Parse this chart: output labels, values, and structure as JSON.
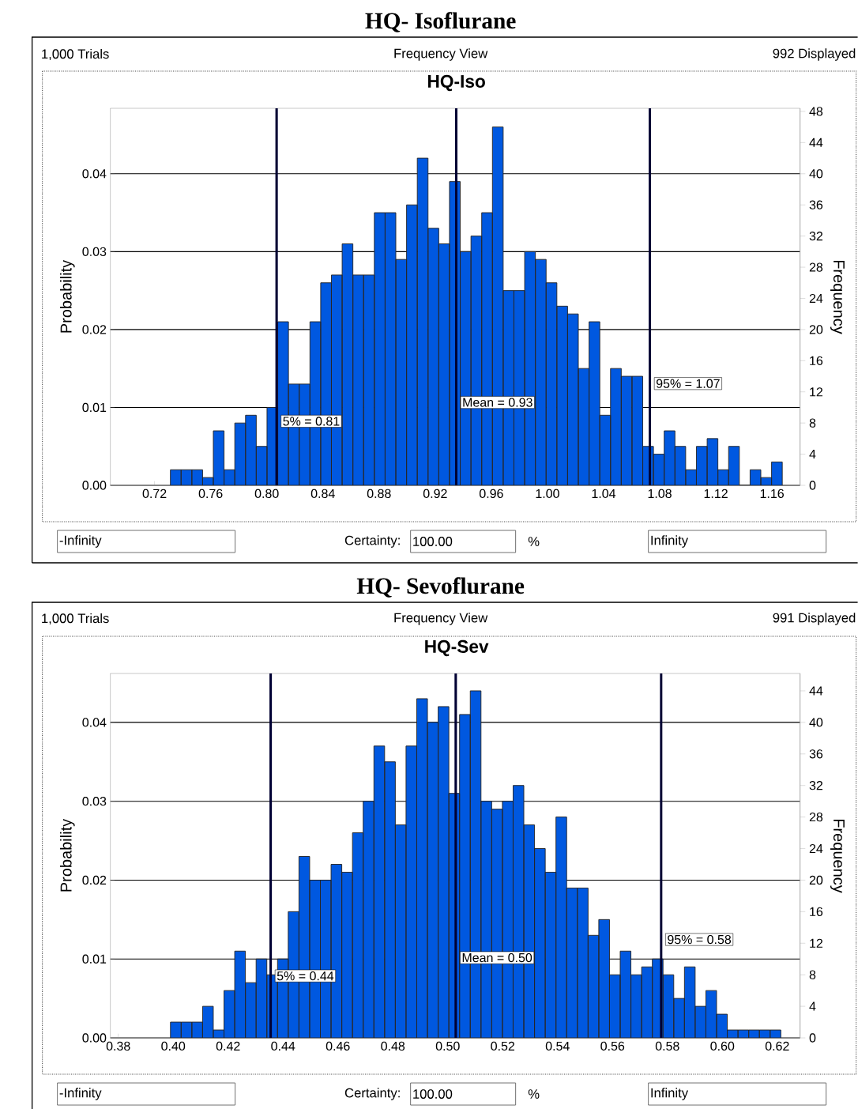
{
  "chart_data": [
    {
      "type": "histogram",
      "title": "HQ- Isoflurane",
      "subtitle": "HQ-Iso",
      "ylabel": "Probability",
      "y2label": "Frequency",
      "annotations": [
        "1,000 Trials",
        "Frequency View",
        "992 Displayed",
        "-Infinity",
        "Certainty:",
        "100.00",
        "%",
        "Infinity"
      ],
      "bins": [
        0.7313,
        0.73895,
        0.7466,
        0.75425,
        0.7619,
        0.76955,
        0.7772,
        0.78485,
        0.7925,
        0.80015,
        0.8078,
        0.81545,
        0.8231,
        0.83075,
        0.8384,
        0.84605,
        0.8537,
        0.86135,
        0.869,
        0.87665,
        0.8843,
        0.89195,
        0.8996,
        0.90725,
        0.9149,
        0.92255,
        0.9302,
        0.93785,
        0.9455,
        0.95315,
        0.9608,
        0.96845,
        0.9761,
        0.98375,
        0.9914,
        0.99905,
        1.0067,
        1.01435,
        1.022,
        1.02965,
        1.0373,
        1.04495,
        1.0526,
        1.06025,
        1.0679,
        1.07555,
        1.0832,
        1.09085,
        1.0985,
        1.10615,
        1.1138,
        1.12145,
        1.1291,
        1.13675,
        1.1444,
        1.15205,
        1.1597,
        1.16735
      ],
      "series": [
        {
          "color": "#0058e0",
          "axis": "y2",
          "values": [
            2,
            2,
            2,
            1,
            7,
            2,
            8,
            9,
            5,
            10,
            21,
            13,
            13,
            21,
            26,
            27,
            31,
            27,
            27,
            35,
            35,
            29,
            36,
            42,
            33,
            31,
            39,
            30,
            32,
            35,
            46,
            25,
            25,
            30,
            29,
            26,
            23,
            22,
            15,
            21,
            9,
            15,
            14,
            14,
            5,
            4,
            7,
            5,
            2,
            5,
            6,
            2,
            5,
            0,
            2,
            1,
            3
          ]
        }
      ],
      "xlim": [
        0.6885,
        1.18
      ],
      "ylim": [
        0,
        0.0484
      ],
      "y2lim": [
        0,
        48.4
      ],
      "xticks": [
        0.72,
        0.76,
        {
          "value": 0.8,
          "label": "0.80"
        },
        0.84,
        0.88,
        0.92,
        0.96,
        {
          "value": 1,
          "label": "1.00"
        },
        1.04,
        1.08,
        1.12,
        1.16
      ],
      "yticks": [
        {
          "value": 0,
          "label": "0.00"
        },
        0.01,
        0.02,
        0.03,
        0.04
      ],
      "y2ticks": [
        0,
        4,
        8,
        12,
        16,
        20,
        24,
        28,
        32,
        36,
        40,
        44,
        48
      ],
      "grid": "y",
      "ref_lines": [
        {
          "axis": "x",
          "value": 0.807,
          "label": "5% = 0.81",
          "color": "#000033"
        },
        {
          "axis": "x",
          "value": 0.935,
          "label": "Mean = 0.93",
          "color": "#000033"
        },
        {
          "axis": "x",
          "value": 1.073,
          "label": "95% = 1.07",
          "color": "#000033"
        }
      ]
    },
    {
      "type": "histogram",
      "title": "HQ- Sevoflurane",
      "subtitle": "HQ-Sev",
      "ylabel": "Probability",
      "y2label": "Frequency",
      "annotations": [
        "1,000 Trials",
        "Frequency View",
        "991 Displayed",
        "-Infinity",
        "Certainty:",
        "100.00",
        "%",
        "Infinity"
      ],
      "bins": [
        0.399,
        0.4029,
        0.4068,
        0.4107,
        0.4146,
        0.4185,
        0.4224,
        0.4263,
        0.4302,
        0.4341,
        0.438,
        0.4419,
        0.4458,
        0.4497,
        0.4536,
        0.4575,
        0.4614,
        0.4653,
        0.4692,
        0.4731,
        0.477,
        0.4809,
        0.4848,
        0.4887,
        0.4926,
        0.4965,
        0.5004,
        0.5043,
        0.5082,
        0.5121,
        0.516,
        0.5199,
        0.5238,
        0.5277,
        0.5316,
        0.5355,
        0.5394,
        0.5433,
        0.5472,
        0.5511,
        0.555,
        0.5589,
        0.5628,
        0.5667,
        0.5706,
        0.5745,
        0.5784,
        0.5823,
        0.5862,
        0.5901,
        0.594,
        0.5979,
        0.6018,
        0.6057,
        0.6096,
        0.6135,
        0.6174,
        0.6213
      ],
      "series": [
        {
          "color": "#0058e0",
          "axis": "y2",
          "values": [
            2,
            2,
            2,
            4,
            1,
            6,
            11,
            7,
            10,
            8,
            10,
            16,
            23,
            20,
            20,
            22,
            21,
            26,
            30,
            37,
            35,
            27,
            37,
            43,
            40,
            42,
            31,
            41,
            44,
            30,
            29,
            30,
            32,
            27,
            24,
            21,
            28,
            19,
            19,
            13,
            15,
            8,
            11,
            8,
            9,
            10,
            8,
            5,
            9,
            4,
            6,
            3,
            1,
            1,
            1,
            1,
            1
          ]
        }
      ],
      "xlim": [
        0.3771,
        0.6283
      ],
      "ylim": [
        0,
        0.0462
      ],
      "y2lim": [
        0,
        46.2
      ],
      "xticks": [
        0.38,
        {
          "value": 0.4,
          "label": "0.40"
        },
        0.42,
        0.44,
        0.46,
        0.48,
        {
          "value": 0.5,
          "label": "0.50"
        },
        0.52,
        0.54,
        0.56,
        0.58,
        {
          "value": 0.6,
          "label": "0.60"
        },
        0.62
      ],
      "yticks": [
        {
          "value": 0,
          "label": "0.00"
        },
        0.01,
        0.02,
        0.03,
        0.04
      ],
      "y2ticks": [
        0,
        4,
        8,
        12,
        16,
        20,
        24,
        28,
        32,
        36,
        40,
        44
      ],
      "grid": "y",
      "ref_lines": [
        {
          "axis": "x",
          "value": 0.4355,
          "label": "5% = 0.44",
          "color": "#000033"
        },
        {
          "axis": "x",
          "value": 0.5029,
          "label": "Mean = 0.50",
          "color": "#000033"
        },
        {
          "axis": "x",
          "value": 0.5777,
          "label": "95% = 0.58",
          "color": "#000033"
        }
      ]
    }
  ]
}
